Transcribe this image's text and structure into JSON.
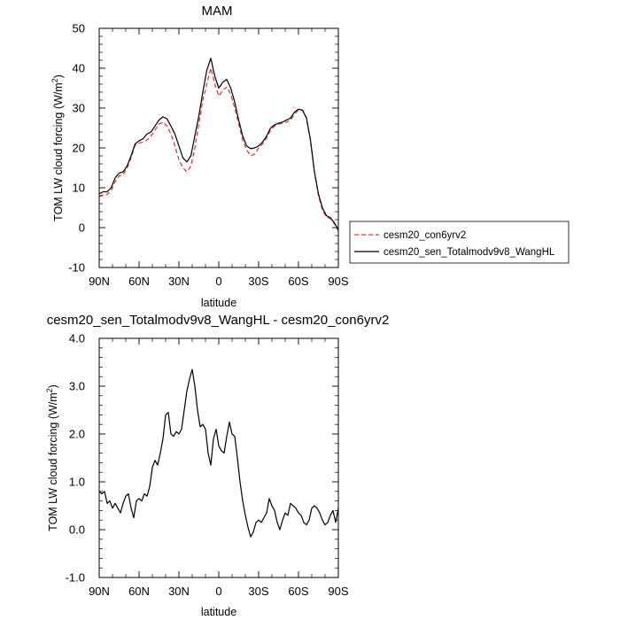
{
  "chart_data": [
    {
      "type": "line",
      "title": "MAM",
      "xlabel": "latitude",
      "ylabel": "TOM LW cloud forcing (W/m²)",
      "ylabel_main": "TOM LW cloud forcing (W/m",
      "ylabel_sup": "2",
      "ylabel_end": ")",
      "xlim": [
        90,
        -90
      ],
      "ylim": [
        -10,
        50
      ],
      "x_ticks": [
        90,
        60,
        30,
        0,
        -30,
        -60,
        -90
      ],
      "x_tick_labels": [
        "90N",
        "60N",
        "30N",
        "0",
        "30S",
        "60S",
        "90S"
      ],
      "y_ticks": [
        -10,
        0,
        10,
        20,
        30,
        40,
        50
      ],
      "y_tick_labels": [
        "-10",
        "0",
        "10",
        "20",
        "30",
        "40",
        "50"
      ],
      "grid": false,
      "legend_position": "right-outside",
      "series": [
        {
          "name": "cesm20_con6yrv2",
          "color": "#e8302a",
          "dash": "dashed",
          "x": [
            90,
            87,
            84,
            81,
            78,
            75,
            72,
            69,
            66,
            63,
            60,
            57,
            54,
            51,
            48,
            45,
            42,
            39,
            36,
            33,
            30,
            27,
            24,
            21,
            18,
            15,
            12,
            9,
            6,
            3,
            0,
            -3,
            -6,
            -9,
            -12,
            -15,
            -18,
            -21,
            -24,
            -27,
            -30,
            -33,
            -36,
            -39,
            -42,
            -45,
            -48,
            -51,
            -54,
            -57,
            -60,
            -63,
            -66,
            -69,
            -72,
            -75,
            -78,
            -81,
            -84,
            -87,
            -90
          ],
          "y": [
            7.8,
            8.2,
            8.3,
            9.3,
            11.5,
            13.0,
            13.3,
            15.0,
            17.5,
            20.7,
            21.2,
            21.5,
            22.0,
            23.0,
            24.5,
            26.0,
            26.5,
            25.5,
            23.5,
            20.5,
            17.0,
            15.0,
            14.0,
            15.5,
            20.0,
            26.0,
            32.0,
            36.0,
            40.0,
            36.0,
            33.0,
            34.5,
            35.3,
            33.5,
            30.0,
            26.0,
            22.0,
            19.5,
            18.0,
            18.5,
            20.0,
            21.0,
            22.5,
            24.5,
            25.5,
            26.0,
            26.2,
            26.5,
            27.0,
            28.5,
            29.5,
            29.5,
            27.5,
            22.0,
            14.0,
            8.0,
            4.5,
            2.7,
            2.3,
            1.0,
            -0.8
          ]
        },
        {
          "name": "cesm20_sen_Totalmodv9v8_WangHL",
          "color": "#000000",
          "dash": "solid",
          "x": [
            90,
            87,
            84,
            81,
            78,
            75,
            72,
            69,
            66,
            63,
            60,
            57,
            54,
            51,
            48,
            45,
            42,
            39,
            36,
            33,
            30,
            27,
            24,
            21,
            18,
            15,
            12,
            9,
            6,
            3,
            0,
            -3,
            -6,
            -9,
            -12,
            -15,
            -18,
            -21,
            -24,
            -27,
            -30,
            -33,
            -36,
            -39,
            -42,
            -45,
            -48,
            -51,
            -54,
            -57,
            -60,
            -63,
            -66,
            -69,
            -72,
            -75,
            -78,
            -81,
            -84,
            -87,
            -90
          ],
          "y": [
            8.5,
            9.0,
            9.0,
            10.0,
            12.5,
            13.7,
            14.0,
            15.5,
            18.0,
            21.0,
            21.8,
            22.3,
            23.5,
            24.0,
            25.5,
            27.0,
            27.8,
            27.3,
            25.5,
            23.5,
            20.5,
            17.5,
            16.5,
            18.0,
            23.0,
            28.0,
            34.0,
            39.5,
            42.5,
            38.0,
            35.0,
            36.5,
            37.2,
            35.0,
            31.5,
            27.0,
            23.0,
            20.5,
            19.8,
            20.0,
            20.5,
            21.5,
            23.0,
            25.0,
            25.8,
            26.2,
            26.5,
            27.0,
            27.5,
            29.0,
            29.7,
            29.5,
            27.5,
            22.0,
            14.0,
            8.5,
            5.0,
            3.0,
            2.5,
            1.2,
            -0.5
          ]
        }
      ]
    },
    {
      "type": "line",
      "title": "cesm20_sen_Totalmodv9v8_WangHL - cesm20_con6yrv2",
      "xlabel": "latitude",
      "ylabel": "TOM LW cloud forcing (W/m²)",
      "ylabel_main": "TOM LW cloud forcing (W/m",
      "ylabel_sup": "2",
      "ylabel_end": ")",
      "xlim": [
        90,
        -90
      ],
      "ylim": [
        -1,
        4
      ],
      "x_ticks": [
        90,
        60,
        30,
        0,
        -30,
        -60,
        -90
      ],
      "x_tick_labels": [
        "90N",
        "60N",
        "30N",
        "0",
        "30S",
        "60S",
        "90S"
      ],
      "y_ticks": [
        -1,
        0,
        1,
        2,
        3,
        4
      ],
      "y_tick_labels": [
        "-1.0",
        "0.0",
        "1.0",
        "2.0",
        "3.0",
        "4.0"
      ],
      "grid": false,
      "series": [
        {
          "color": "#000000",
          "dash": "solid",
          "x": [
            90,
            88,
            86,
            84,
            82,
            80,
            78,
            76,
            74,
            72,
            70,
            68,
            66,
            64,
            62,
            60,
            58,
            56,
            54,
            52,
            50,
            48,
            46,
            44,
            42,
            40,
            38,
            36,
            34,
            32,
            30,
            28,
            26,
            24,
            22,
            20,
            18,
            16,
            14,
            12,
            10,
            8,
            6,
            4,
            2,
            0,
            -2,
            -4,
            -6,
            -8,
            -10,
            -12,
            -14,
            -16,
            -18,
            -20,
            -22,
            -24,
            -26,
            -28,
            -30,
            -32,
            -34,
            -36,
            -38,
            -40,
            -42,
            -44,
            -46,
            -48,
            -50,
            -52,
            -54,
            -56,
            -58,
            -60,
            -62,
            -64,
            -66,
            -68,
            -70,
            -72,
            -74,
            -76,
            -78,
            -80,
            -82,
            -84,
            -86,
            -88,
            -90
          ],
          "y": [
            0.8,
            0.75,
            0.8,
            0.55,
            0.6,
            0.45,
            0.55,
            0.45,
            0.35,
            0.55,
            0.7,
            0.75,
            0.45,
            0.25,
            0.6,
            0.65,
            0.6,
            0.75,
            0.7,
            0.9,
            1.3,
            1.45,
            1.35,
            1.6,
            1.9,
            2.4,
            2.45,
            2.0,
            1.95,
            2.05,
            2.0,
            2.1,
            2.5,
            2.9,
            3.15,
            3.35,
            3.0,
            2.5,
            2.15,
            2.2,
            2.1,
            1.6,
            1.35,
            1.9,
            2.1,
            1.75,
            1.65,
            1.6,
            1.95,
            2.25,
            2.0,
            1.95,
            1.5,
            1.0,
            0.6,
            0.3,
            0.05,
            -0.15,
            -0.05,
            0.15,
            0.2,
            0.15,
            0.25,
            0.35,
            0.65,
            0.5,
            0.4,
            0.15,
            0.0,
            0.2,
            0.35,
            0.3,
            0.55,
            0.5,
            0.45,
            0.35,
            0.3,
            0.15,
            0.1,
            0.2,
            0.45,
            0.5,
            0.45,
            0.35,
            0.2,
            0.1,
            0.15,
            0.3,
            0.4,
            0.15,
            0.45
          ]
        }
      ]
    }
  ]
}
